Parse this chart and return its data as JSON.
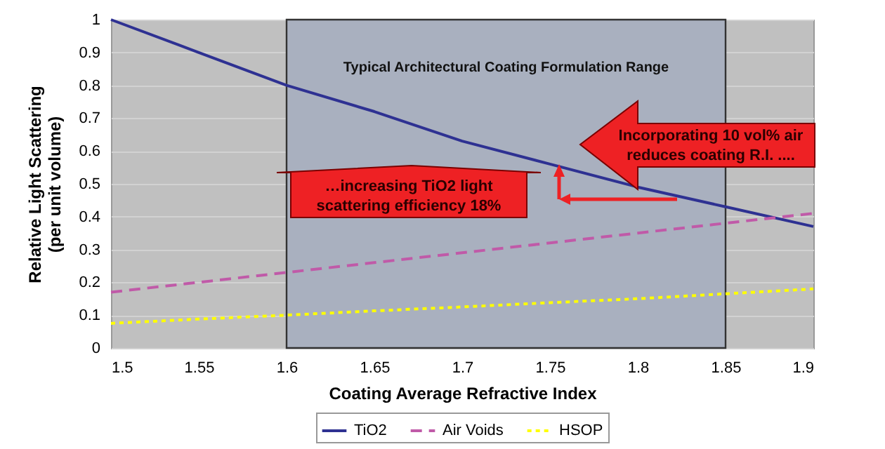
{
  "chart_data": {
    "type": "line",
    "xlabel": "Coating Average Refractive Index",
    "ylabel": "Relative Light Scattering\n(per unit volume)",
    "x": [
      1.5,
      1.55,
      1.6,
      1.65,
      1.7,
      1.75,
      1.8,
      1.85,
      1.9
    ],
    "series": [
      {
        "name": "TiO2",
        "color": "#2e3192",
        "line_style": "solid",
        "values": [
          1.0,
          0.9,
          0.8,
          0.72,
          0.63,
          0.56,
          0.49,
          0.43,
          0.37
        ]
      },
      {
        "name": "Air Voids",
        "color": "#c05aa8",
        "line_style": "dashed",
        "values": [
          0.17,
          0.2,
          0.23,
          0.26,
          0.29,
          0.32,
          0.35,
          0.38,
          0.41
        ]
      },
      {
        "name": "HSOP",
        "color": "#ffff00",
        "line_style": "dotted",
        "values": [
          0.075,
          0.088,
          0.1,
          0.113,
          0.125,
          0.138,
          0.15,
          0.165,
          0.18
        ]
      }
    ],
    "xlim": [
      1.5,
      1.9
    ],
    "xticks": [
      1.5,
      1.55,
      1.6,
      1.65,
      1.7,
      1.75,
      1.8,
      1.85,
      1.9
    ],
    "ylim": [
      0,
      1
    ],
    "yticks": [
      0,
      0.1,
      0.2,
      0.3,
      0.4,
      0.5,
      0.6,
      0.7,
      0.8,
      0.9,
      1
    ],
    "bands": [
      {
        "axis": "x",
        "from": 1.6,
        "to": 1.85,
        "label": "Typical Architectural Coating Formulation Range",
        "color": "#a9b0bf"
      }
    ],
    "annotations": [
      "Incorporating 10 vol% air\nreduces coating R.I. ....",
      "…increasing TiO2 light\nscattering efficiency 18%"
    ],
    "grid": "y",
    "legend": "bottom"
  }
}
